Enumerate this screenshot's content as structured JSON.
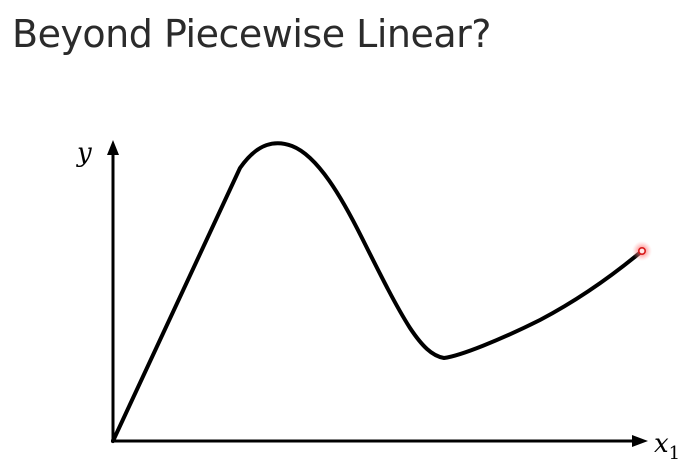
{
  "slide": {
    "title": "Beyond Piecewise Linear?"
  },
  "plot": {
    "y_axis_label": "y",
    "x_axis_label_base": "x",
    "x_axis_label_subscript": "1",
    "colors": {
      "curve": "#000000",
      "axes": "#000000",
      "pointer_glow": "#ff6b6b",
      "pointer_core": "#e02020"
    }
  }
}
